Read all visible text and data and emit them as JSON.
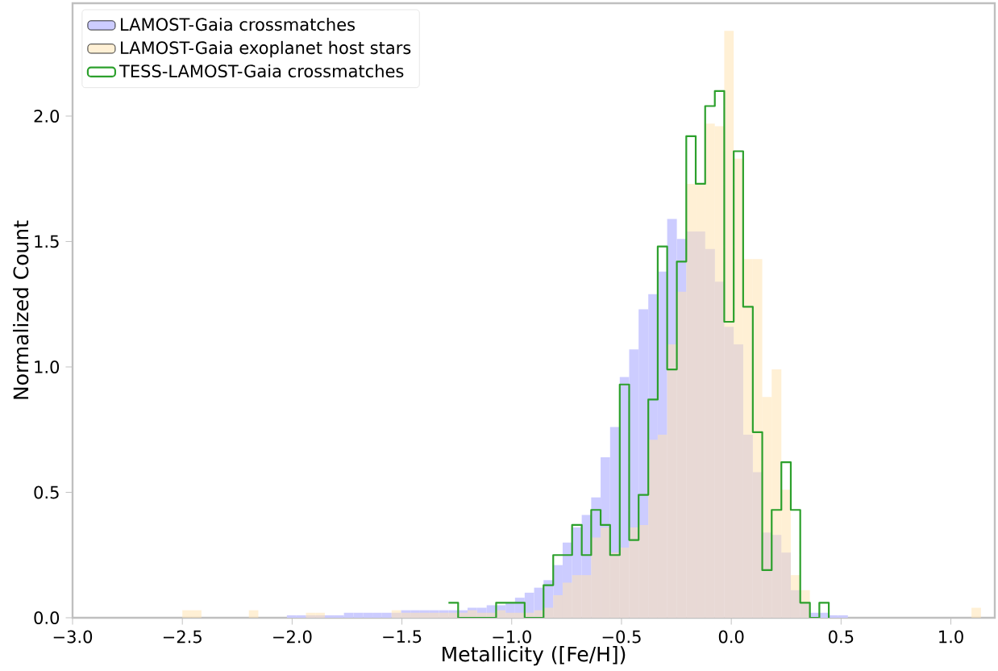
{
  "chart_data": {
    "type": "histogram",
    "xlabel": "Metallicity ([Fe/H])",
    "ylabel": "Normalized Count",
    "bins": [
      -2.5,
      -2.457,
      -2.413,
      -2.37,
      -2.327,
      -2.284,
      -2.24,
      -2.197,
      -2.154,
      -2.11,
      -2.067,
      -2.024,
      -1.98,
      -1.937,
      -1.894,
      -1.851,
      -1.807,
      -1.764,
      -1.721,
      -1.677,
      -1.634,
      -1.591,
      -1.547,
      -1.504,
      -1.461,
      -1.418,
      -1.374,
      -1.331,
      -1.288,
      -1.244,
      -1.201,
      -1.158,
      -1.114,
      -1.071,
      -1.028,
      -0.985,
      -0.941,
      -0.898,
      -0.855,
      -0.811,
      -0.768,
      -0.725,
      -0.681,
      -0.638,
      -0.595,
      -0.552,
      -0.508,
      -0.465,
      -0.422,
      -0.378,
      -0.335,
      -0.292,
      -0.248,
      -0.205,
      -0.162,
      -0.119,
      -0.075,
      -0.032,
      0.011,
      0.054,
      0.098,
      0.141,
      0.184,
      0.228,
      0.271,
      0.314,
      0.358,
      0.401,
      0.444,
      0.487,
      0.531,
      0.574,
      0.617,
      0.661,
      0.704,
      0.747,
      0.79,
      0.834,
      0.877,
      0.92,
      0.964,
      1.007,
      1.05,
      1.094,
      1.137,
      1.18
    ],
    "series": [
      {
        "name": "LAMOST-Gaia crossmatches",
        "color": "#ccccff",
        "values": [
          0,
          0,
          0,
          0,
          0,
          0,
          0,
          0,
          0,
          0,
          0,
          0.01,
          0.01,
          0.01,
          0.01,
          0.01,
          0.01,
          0.02,
          0.02,
          0.02,
          0.02,
          0.02,
          0.02,
          0.03,
          0.03,
          0.03,
          0.03,
          0.03,
          0.03,
          0.03,
          0.04,
          0.04,
          0.05,
          0.05,
          0.06,
          0.08,
          0.1,
          0.12,
          0.15,
          0.21,
          0.3,
          0.36,
          0.41,
          0.48,
          0.64,
          0.76,
          0.96,
          1.07,
          1.23,
          1.29,
          1.38,
          1.59,
          1.51,
          1.54,
          1.54,
          1.47,
          1.34,
          1.16,
          1.09,
          0.73,
          0.58,
          0.34,
          0.33,
          0.26,
          0.11,
          0.06,
          0.02,
          0.02,
          0.01,
          0.01,
          0,
          0,
          0,
          0,
          0,
          0,
          0,
          0,
          0,
          0,
          0,
          0,
          0,
          0,
          0
        ]
      },
      {
        "name": "LAMOST-Gaia exoplanet host stars",
        "color": "#ffe4b2",
        "values": [
          0.03,
          0.03,
          0,
          0,
          0,
          0,
          0,
          0.03,
          0,
          0,
          0,
          0,
          0,
          0.02,
          0.02,
          0,
          0,
          0,
          0,
          0,
          0,
          0,
          0.03,
          0.02,
          0.02,
          0.02,
          0.02,
          0.02,
          0.02,
          0.02,
          0.03,
          0.02,
          0.02,
          0.03,
          0.02,
          0.02,
          0.02,
          0.03,
          0.04,
          0.09,
          0.14,
          0.17,
          0.17,
          0.32,
          0.36,
          0.26,
          0.28,
          0.36,
          0.37,
          0.71,
          0.73,
          1.09,
          1.3,
          1.73,
          1.73,
          1.97,
          1.96,
          2.34,
          1.83,
          1.43,
          1.43,
          0.88,
          0.99,
          0.51,
          0.17,
          0.11,
          null,
          0,
          0,
          0,
          0,
          0,
          0,
          0,
          0,
          0,
          0,
          0,
          0,
          0,
          0,
          0,
          0,
          0.04,
          0
        ]
      },
      {
        "name": "TESS-LAMOST-Gaia crossmatches",
        "type": "step",
        "color": "#2ca02c",
        "x": [
          -1.288,
          -1.244,
          -1.201,
          -1.158,
          -1.114,
          -1.071,
          -1.028,
          -0.985,
          -0.941,
          -0.898,
          -0.855,
          -0.811,
          -0.768,
          -0.725,
          -0.681,
          -0.638,
          -0.595,
          -0.552,
          -0.508,
          -0.465,
          -0.422,
          -0.378,
          -0.335,
          -0.292,
          -0.248,
          -0.205,
          -0.162,
          -0.119,
          -0.075,
          -0.032,
          0.011,
          0.054,
          0.098,
          0.141,
          0.184,
          0.228,
          0.271,
          0.314,
          0.358,
          0.401,
          0.444
        ],
        "values": [
          0.06,
          0,
          0,
          0,
          0,
          0.06,
          0.06,
          0.06,
          0,
          0,
          0.13,
          0.25,
          0.25,
          0.37,
          0.25,
          0.43,
          0.37,
          0.25,
          0.93,
          0.31,
          0.49,
          0.87,
          1.48,
          0.99,
          1.42,
          1.92,
          1.73,
          2.04,
          2.1,
          1.18,
          1.86,
          1.24,
          0.74,
          0.19,
          0.43,
          0.62,
          0.43,
          0.06,
          0,
          0.06,
          0
        ]
      }
    ],
    "xlim": [
      -3.0,
      1.2
    ],
    "ylim": [
      0,
      2.45
    ],
    "xticks": [
      {
        "value": -3.0,
        "label": "−3.0"
      },
      {
        "value": -2.5,
        "label": "−2.5"
      },
      {
        "value": -2.0,
        "label": "−2.0"
      },
      {
        "value": -1.5,
        "label": "−1.5"
      },
      {
        "value": -1.0,
        "label": "−1.0"
      },
      {
        "value": -0.5,
        "label": "−0.5"
      },
      {
        "value": 0.0,
        "label": "0.0"
      },
      {
        "value": 0.5,
        "label": "0.5"
      },
      {
        "value": 1.0,
        "label": "1.0"
      }
    ],
    "yticks": [
      {
        "value": 0.0,
        "label": "0.0"
      },
      {
        "value": 0.5,
        "label": "0.5"
      },
      {
        "value": 1.0,
        "label": "1.0"
      },
      {
        "value": 1.5,
        "label": "1.5"
      },
      {
        "value": 2.0,
        "label": "2.0"
      }
    ],
    "legend": "top left"
  }
}
